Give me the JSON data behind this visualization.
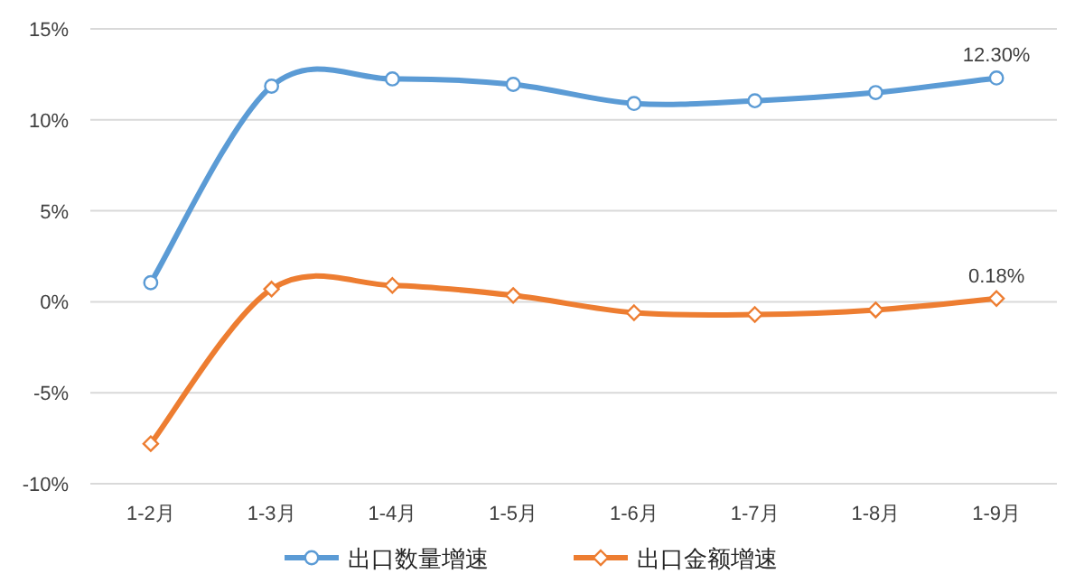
{
  "chart_data": {
    "type": "line",
    "categories": [
      "1-2月",
      "1-3月",
      "1-4月",
      "1-5月",
      "1-6月",
      "1-7月",
      "1-8月",
      "1-9月"
    ],
    "series": [
      {
        "name": "出口数量增速",
        "color": "#5b9bd5",
        "marker": "circle",
        "values": [
          1.05,
          11.85,
          12.25,
          11.95,
          10.9,
          11.05,
          11.5,
          12.3
        ],
        "value_labels": [
          null,
          null,
          null,
          null,
          null,
          null,
          null,
          "12.30%"
        ]
      },
      {
        "name": "出口金额增速",
        "color": "#ed7d31",
        "marker": "diamond",
        "values": [
          -7.8,
          0.7,
          0.9,
          0.35,
          -0.6,
          -0.7,
          -0.45,
          0.18
        ],
        "value_labels": [
          null,
          null,
          null,
          null,
          null,
          null,
          null,
          "0.18%"
        ]
      }
    ],
    "ylim": [
      -10,
      15
    ],
    "yticks": [
      {
        "value": -10,
        "label": "-10%"
      },
      {
        "value": -5,
        "label": "-5%"
      },
      {
        "value": 0,
        "label": "0%"
      },
      {
        "value": 5,
        "label": "5%"
      },
      {
        "value": 10,
        "label": "10%"
      },
      {
        "value": 15,
        "label": "15%"
      }
    ],
    "grid": "y",
    "legend": "bottom"
  }
}
